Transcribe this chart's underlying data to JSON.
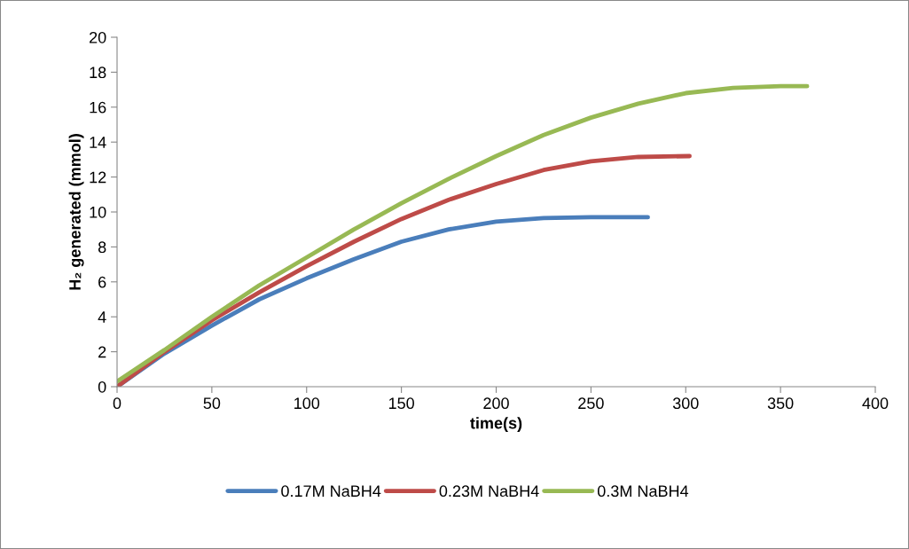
{
  "chart_data": {
    "type": "line",
    "xlabel": "time(s)",
    "ylabel": "H₂ generated (mmol)",
    "xlim": [
      0,
      400
    ],
    "xticks": [
      0,
      50,
      100,
      150,
      200,
      250,
      300,
      350,
      400
    ],
    "ylim": [
      0,
      20
    ],
    "yticks": [
      0,
      2,
      4,
      6,
      8,
      10,
      12,
      14,
      16,
      18,
      20
    ],
    "grid": false,
    "legend": "bottom",
    "marker": "none",
    "line_style": "solid",
    "series": [
      {
        "name": "0.17M NaBH4",
        "color": "#4a7ebb",
        "x": [
          0,
          25,
          50,
          75,
          100,
          125,
          150,
          175,
          200,
          225,
          250,
          280
        ],
        "values": [
          0,
          1.9,
          3.5,
          5.0,
          6.2,
          7.3,
          8.3,
          9.0,
          9.45,
          9.65,
          9.7,
          9.7
        ]
      },
      {
        "name": "0.23M NaBH4",
        "color": "#be4b48",
        "x": [
          0,
          25,
          50,
          75,
          100,
          125,
          150,
          175,
          200,
          225,
          250,
          275,
          302
        ],
        "values": [
          0,
          2.0,
          3.8,
          5.4,
          6.9,
          8.3,
          9.6,
          10.7,
          11.6,
          12.4,
          12.9,
          13.15,
          13.2
        ]
      },
      {
        "name": "0.3M NaBH4",
        "color": "#98b954",
        "x": [
          0,
          25,
          50,
          75,
          100,
          125,
          150,
          175,
          200,
          225,
          250,
          275,
          300,
          325,
          350,
          364
        ],
        "values": [
          0.3,
          2.1,
          4.0,
          5.8,
          7.4,
          9.0,
          10.5,
          11.9,
          13.2,
          14.4,
          15.4,
          16.2,
          16.8,
          17.1,
          17.2,
          17.2
        ]
      }
    ]
  }
}
